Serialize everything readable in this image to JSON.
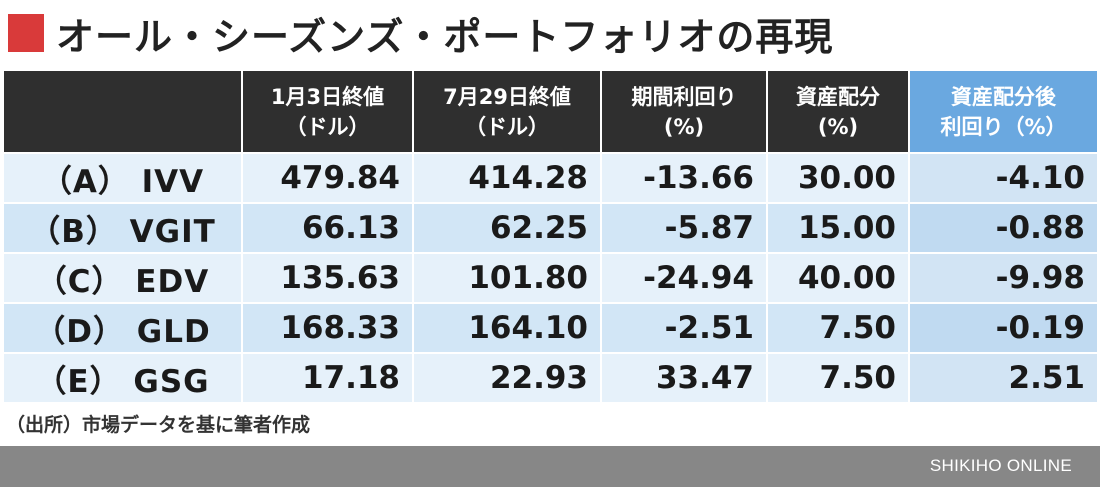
{
  "title": "オール・シーズンズ・ポートフォリオの再現",
  "table": {
    "headers": [
      "",
      "1月3日終値\n（ドル）",
      "7月29日終値\n（ドル）",
      "期間利回り\n(%)",
      "資産配分\n(%)",
      "資産配分後\n利回り（%）"
    ],
    "rows": [
      [
        "（A） IVV",
        "479.84",
        "414.28",
        "-13.66",
        "30.00",
        "-4.10"
      ],
      [
        "（B） VGIT",
        "66.13",
        "62.25",
        "-5.87",
        "15.00",
        "-0.88"
      ],
      [
        "（C） EDV",
        "135.63",
        "101.80",
        "-24.94",
        "40.00",
        "-9.98"
      ],
      [
        "（D） GLD",
        "168.33",
        "164.10",
        "-2.51",
        "7.50",
        "-0.19"
      ],
      [
        "（E） GSG",
        "17.18",
        "22.93",
        "33.47",
        "7.50",
        "2.51"
      ]
    ]
  },
  "source": "（出所）市場データを基に筆者作成",
  "brand": "SHIKIHO ONLINE",
  "colors": {
    "accent": "#d93a3a",
    "header_bg": "#2f2f2f",
    "highlight_header": "#6aa8e0",
    "row_light": "#e6f1fa",
    "row_dark": "#d2e6f6",
    "footer_bg": "#878787"
  }
}
